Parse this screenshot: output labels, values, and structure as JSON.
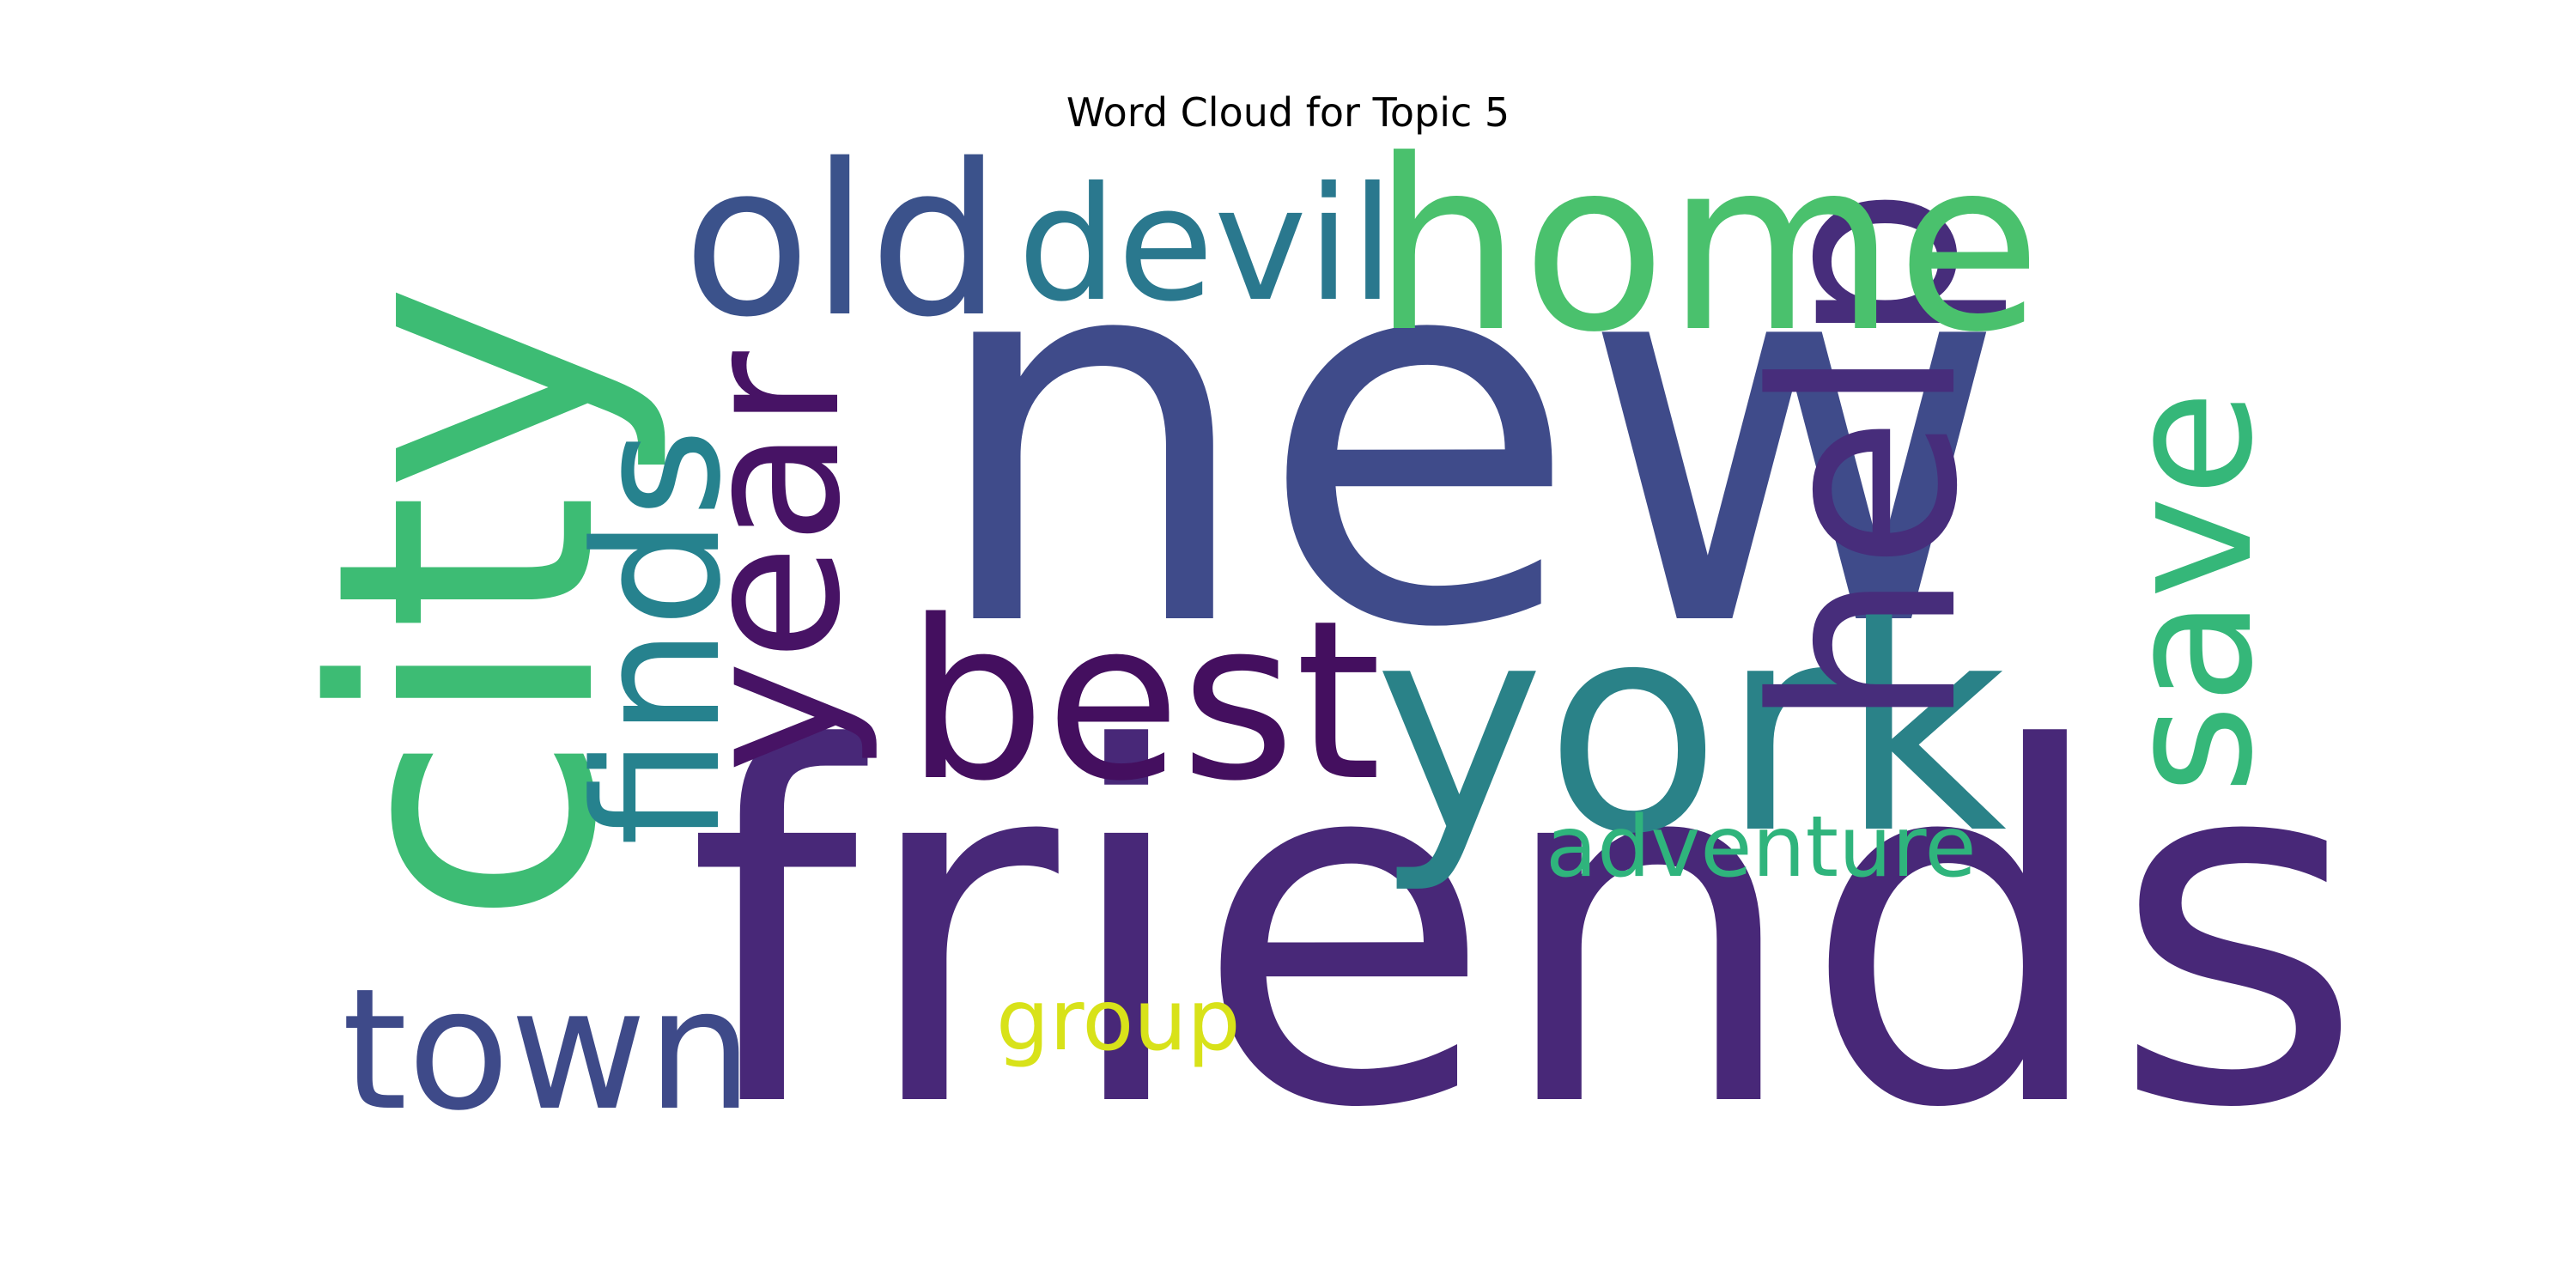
{
  "chart_data": {
    "type": "wordcloud",
    "title": "Word Cloud for Topic 5",
    "words": [
      {
        "text": "new",
        "weight": 1.0,
        "orientation": "horizontal",
        "color": "#3f4b8a"
      },
      {
        "text": "friends",
        "weight": 0.93,
        "orientation": "horizontal",
        "color": "#482878"
      },
      {
        "text": "city",
        "weight": 0.68,
        "orientation": "vertical",
        "color": "#3dbc74"
      },
      {
        "text": "york",
        "weight": 0.55,
        "orientation": "horizontal",
        "color": "#2a8288"
      },
      {
        "text": "help",
        "weight": 0.48,
        "orientation": "vertical",
        "color": "#472d7b"
      },
      {
        "text": "home",
        "weight": 0.45,
        "orientation": "horizontal",
        "color": "#4ac16d"
      },
      {
        "text": "best",
        "weight": 0.42,
        "orientation": "horizontal",
        "color": "#440f5f"
      },
      {
        "text": "old",
        "weight": 0.4,
        "orientation": "horizontal",
        "color": "#3b528b"
      },
      {
        "text": "year",
        "weight": 0.36,
        "orientation": "vertical",
        "color": "#471365"
      },
      {
        "text": "finds",
        "weight": 0.33,
        "orientation": "vertical",
        "color": "#26828e"
      },
      {
        "text": "save",
        "weight": 0.33,
        "orientation": "vertical",
        "color": "#35b779"
      },
      {
        "text": "town",
        "weight": 0.32,
        "orientation": "horizontal",
        "color": "#3e4a89"
      },
      {
        "text": "devil",
        "weight": 0.3,
        "orientation": "horizontal",
        "color": "#2a788e"
      },
      {
        "text": "adventure",
        "weight": 0.16,
        "orientation": "horizontal",
        "color": "#2fb47c"
      },
      {
        "text": "group",
        "weight": 0.16,
        "orientation": "horizontal",
        "color": "#d8e219"
      }
    ]
  }
}
